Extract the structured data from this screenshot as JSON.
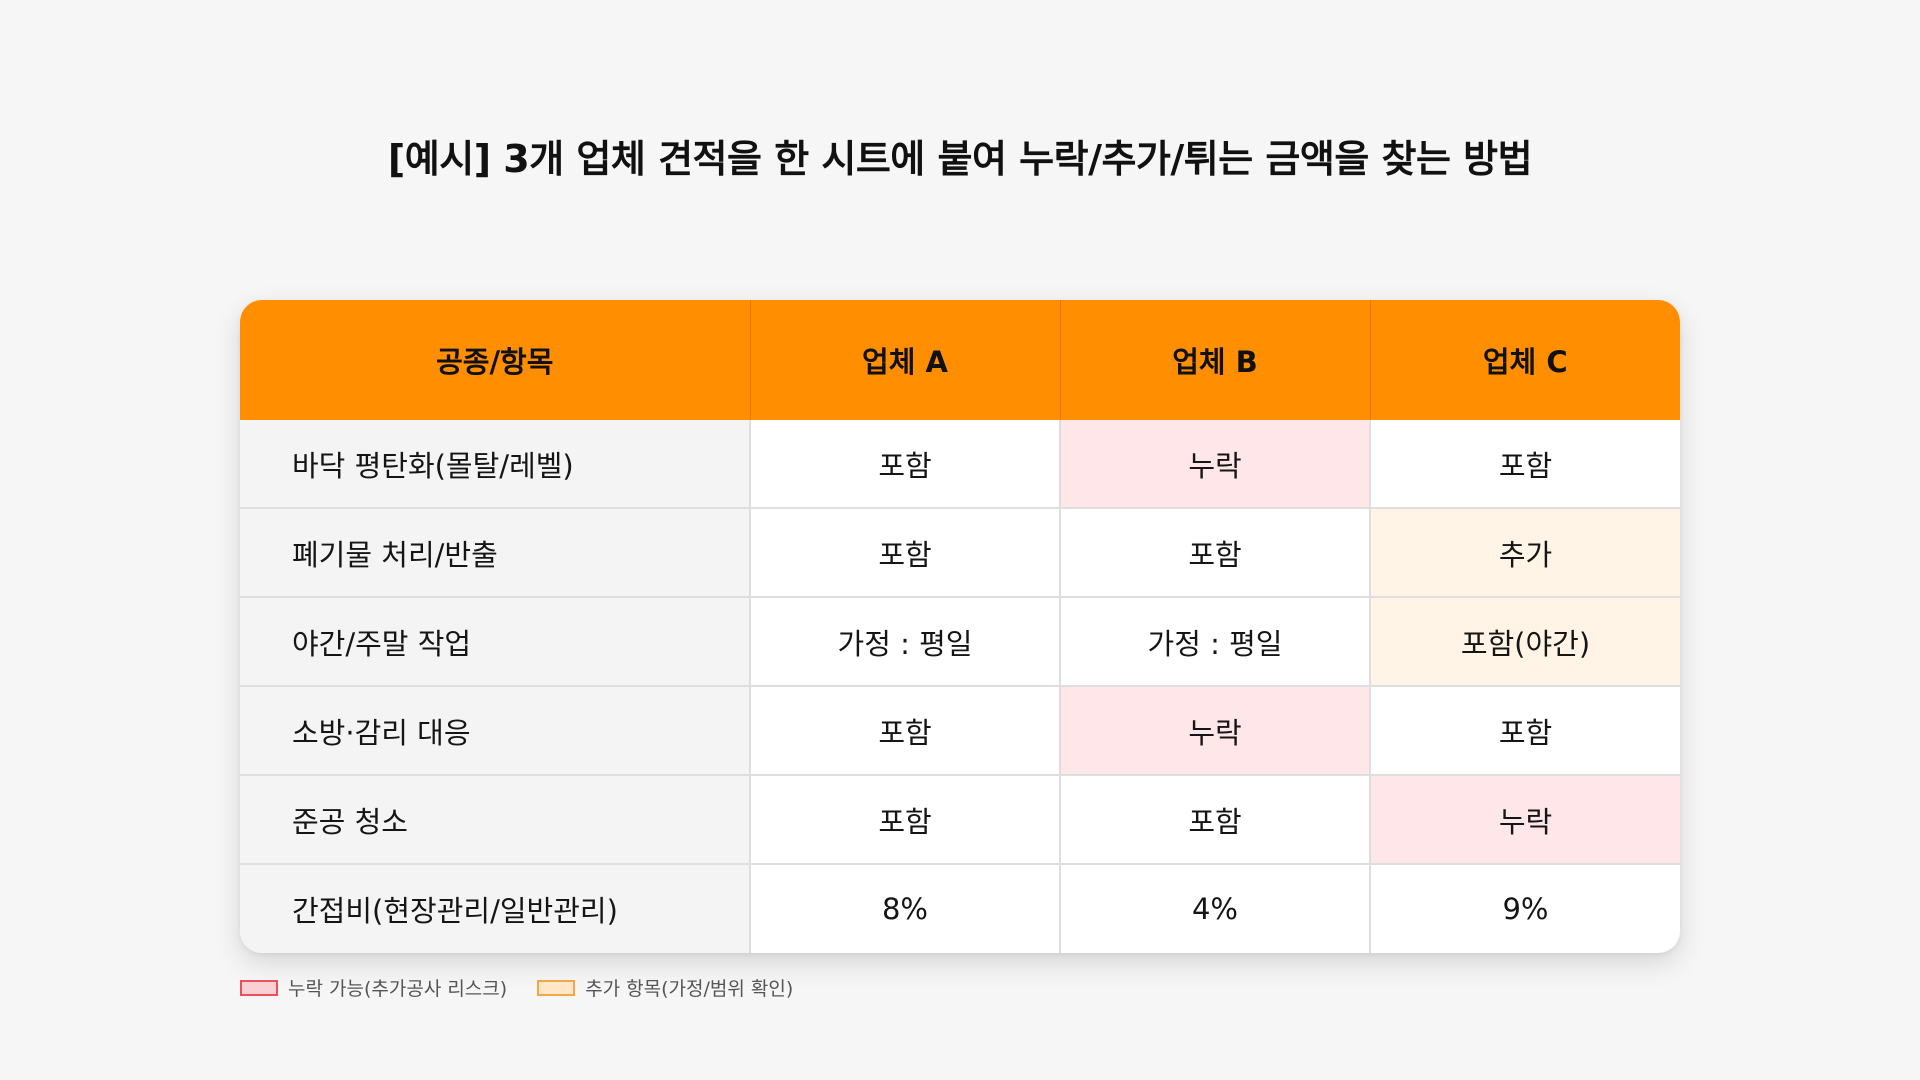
{
  "title": "[예시] 3개 업체 견적을 한 시트에 붙여 누락/추가/튀는 금액을 찾는 방법",
  "table": {
    "headers": [
      "공종/항목",
      "업체 A",
      "업체 B",
      "업체 C"
    ],
    "rows": [
      {
        "item": "바닥 평탄화(몰탈/레벨)",
        "a": "포함",
        "b": "누락",
        "c": "포함"
      },
      {
        "item": "폐기물 처리/반출",
        "a": "포함",
        "b": "포함",
        "c": "추가"
      },
      {
        "item": "야간/주말 작업",
        "a": "가정 : 평일",
        "b": "가정 : 평일",
        "c": "포함(야간)"
      },
      {
        "item": "소방·감리 대응",
        "a": "포함",
        "b": "누락",
        "c": "포함"
      },
      {
        "item": "준공 청소",
        "a": "포함",
        "b": "포함",
        "c": "누락"
      },
      {
        "item": "간접비(현장관리/일반관리)",
        "a": "8%",
        "b": "4%",
        "c": "9%"
      }
    ]
  },
  "legend": {
    "missing": "누락 가능(추가공사 리스크)",
    "extra": "추가 항목(가정/범위 확인)"
  },
  "colors": {
    "header": "#ff8f00",
    "missing_bg": "#ffe6e8",
    "extra_bg": "#fff4e5"
  }
}
